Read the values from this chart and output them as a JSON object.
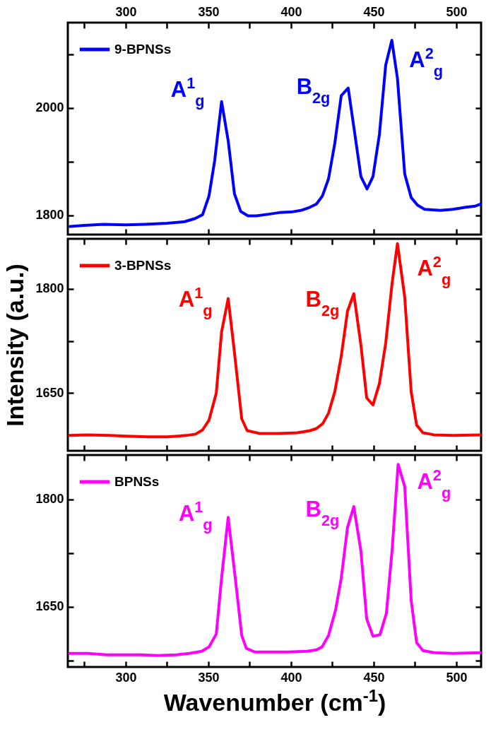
{
  "chart_data": [
    {
      "type": "line",
      "legend": "top left",
      "tick_labels": "y",
      "xlim": [
        265,
        515
      ],
      "xticks": [
        300,
        350,
        400,
        450,
        500
      ],
      "x2lim": [
        265,
        515
      ],
      "x2ticks": [
        {
          "value": 275,
          "label": null
        },
        300,
        {
          "value": 325,
          "label": null
        },
        350,
        {
          "value": 375,
          "label": null
        },
        400,
        {
          "value": 425,
          "label": null
        },
        450,
        {
          "value": 475,
          "label": null
        },
        500
      ],
      "ylim": [
        1764,
        2159
      ],
      "yticks": [
        1800,
        {
          "value": 1900,
          "label": null
        },
        2000,
        {
          "value": 2100,
          "label": null
        }
      ],
      "series": [
        {
          "name": "9-BPNSs",
          "color": "#0000ff",
          "x": [
            266.3,
            275,
            286.5,
            300,
            311.5,
            325,
            335.6,
            342,
            346.5,
            350.4,
            353.8,
            358,
            362,
            365.8,
            369.6,
            374,
            379,
            386.5,
            393,
            400,
            406,
            411.5,
            415.4,
            419,
            422.7,
            426.5,
            430.4,
            434.6,
            438.5,
            442.3,
            446,
            449.6,
            453.5,
            457.3,
            461,
            464.4,
            468.8,
            472.7,
            476.5,
            480.8,
            490.4,
            498,
            505.8,
            511.5,
            515
          ],
          "values": [
            1779,
            1781,
            1783,
            1782,
            1783,
            1785,
            1788,
            1794,
            1801,
            1836,
            1901,
            2012,
            1939,
            1840,
            1807,
            1799,
            1799,
            1802,
            1805,
            1806,
            1809,
            1815,
            1821,
            1836,
            1868,
            1934,
            2023,
            2037,
            1954,
            1872,
            1849,
            1872,
            1951,
            2080,
            2126,
            2055,
            1877,
            1833,
            1819,
            1811,
            1809,
            1811,
            1815,
            1817,
            1821
          ]
        }
      ],
      "annotations": [
        "A$^{1}$$_{g}$",
        "B$_{2g}$",
        "A$^{2}$$_{g}$"
      ]
    },
    {
      "type": "line",
      "legend": "top left",
      "tick_labels": "y",
      "ylabel": "Intensity (a.u.)",
      "xlim": [
        265,
        515
      ],
      "xticks": [
        {
          "value": 275,
          "label": null
        },
        300,
        {
          "value": 325,
          "label": null
        },
        350,
        {
          "value": 375,
          "label": null
        },
        400,
        {
          "value": 425,
          "label": null
        },
        450,
        {
          "value": 475,
          "label": null
        },
        500
      ],
      "ylim": [
        1567,
        1872
      ],
      "yticks": [
        1650,
        {
          "value": 1725,
          "label": null
        },
        1800
      ],
      "series": [
        {
          "name": "3-BPNSs",
          "color": "#ff0000",
          "x": [
            266,
            276.9,
            290.4,
            300,
            313.5,
            325,
            336.5,
            342.3,
            346.5,
            350.4,
            354.8,
            358,
            362,
            365.4,
            370.2,
            373.5,
            380.8,
            392.3,
            403.8,
            411.5,
            415.4,
            419.2,
            422.7,
            426.5,
            430.4,
            434.2,
            438,
            442.3,
            445.8,
            449.6,
            453.5,
            457.3,
            461.2,
            464.4,
            468.8,
            472.7,
            476,
            479.8,
            486.5,
            498,
            515
          ],
          "values": [
            1589,
            1590,
            1589,
            1588,
            1587,
            1587,
            1589,
            1591,
            1597,
            1611,
            1650,
            1738,
            1786,
            1717,
            1613,
            1596,
            1592,
            1592,
            1593,
            1596,
            1599,
            1606,
            1621,
            1652,
            1703,
            1768,
            1793,
            1719,
            1643,
            1633,
            1664,
            1722,
            1809,
            1865,
            1788,
            1652,
            1604,
            1593,
            1590,
            1589,
            1590
          ]
        }
      ],
      "annotations": [
        "A$^{1}$$_{g}$",
        "B$_{2g}$",
        "A$^{2}$$_{g}$"
      ]
    },
    {
      "type": "line",
      "legend": "top left",
      "xlabel": "Wavenumber (cm$^{-1}$)",
      "xlim": [
        265,
        515
      ],
      "xticks": [
        {
          "value": 275,
          "label": null
        },
        300,
        {
          "value": 325,
          "label": null
        },
        350,
        {
          "value": 375,
          "label": null
        },
        400,
        {
          "value": 425,
          "label": null
        },
        450,
        {
          "value": 475,
          "label": null
        },
        500
      ],
      "ylim": [
        1566,
        1862
      ],
      "yticks": [
        {
          "value": 1575,
          "label": null
        },
        1650,
        {
          "value": 1725,
          "label": null
        },
        1800
      ],
      "series": [
        {
          "name": "BPNSs",
          "color": "#ff00ff",
          "x": [
            266,
            277,
            288.5,
            300,
            309.6,
            319.2,
            330.8,
            338.5,
            346,
            350.4,
            354.8,
            358,
            362,
            366.3,
            370.2,
            373,
            378,
            386.5,
            398,
            409.6,
            415.4,
            418.8,
            422.7,
            427,
            430.4,
            434.2,
            438,
            442.3,
            445.8,
            449.6,
            453.8,
            457.7,
            461.2,
            464.8,
            468.8,
            472.7,
            476,
            479.8,
            486.5,
            498,
            515
          ],
          "values": [
            1585,
            1585,
            1583,
            1583,
            1583,
            1582,
            1583,
            1585,
            1588,
            1594,
            1612,
            1690,
            1775,
            1690,
            1610,
            1592,
            1587,
            1587,
            1587,
            1588,
            1590,
            1594,
            1610,
            1646,
            1690,
            1761,
            1790,
            1728,
            1633,
            1609,
            1611,
            1641,
            1730,
            1849,
            1818,
            1659,
            1600,
            1589,
            1586,
            1585,
            1586
          ]
        }
      ],
      "annotations": [
        "A$^{1}$$_{g}$",
        "B$_{2g}$",
        "A$^{2}$$_{g}$"
      ]
    }
  ]
}
